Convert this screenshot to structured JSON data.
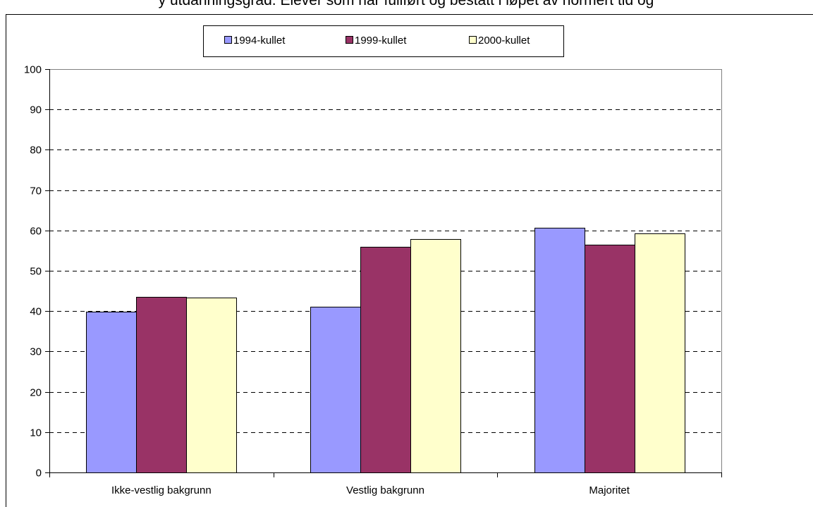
{
  "colors": {
    "series": [
      "#9999ff",
      "#993366",
      "#ffffcc"
    ],
    "grid": "#000000",
    "background": "#ffffff"
  },
  "chart_data": {
    "type": "bar",
    "title": "y utdanningsgrad.  Elever som har fullført og bestått i løpet av normert tid og",
    "xlabel": "",
    "ylabel": "",
    "categories": [
      "Ikke-vestlig bakgrunn",
      "Vestlig bakgrunn",
      "Majoritet"
    ],
    "series": [
      {
        "name": "1994-kullet",
        "values": [
          39.8,
          41.1,
          60.6
        ]
      },
      {
        "name": "1999-kullet",
        "values": [
          43.6,
          56.0,
          56.4
        ]
      },
      {
        "name": "2000-kullet",
        "values": [
          43.3,
          57.9,
          59.2
        ]
      }
    ],
    "ylim": [
      0,
      100
    ],
    "yticks": [
      0,
      10,
      20,
      30,
      40,
      50,
      60,
      70,
      80,
      90,
      100
    ],
    "grid": true,
    "grid_style": "dashed",
    "legend_position": "top-center"
  }
}
